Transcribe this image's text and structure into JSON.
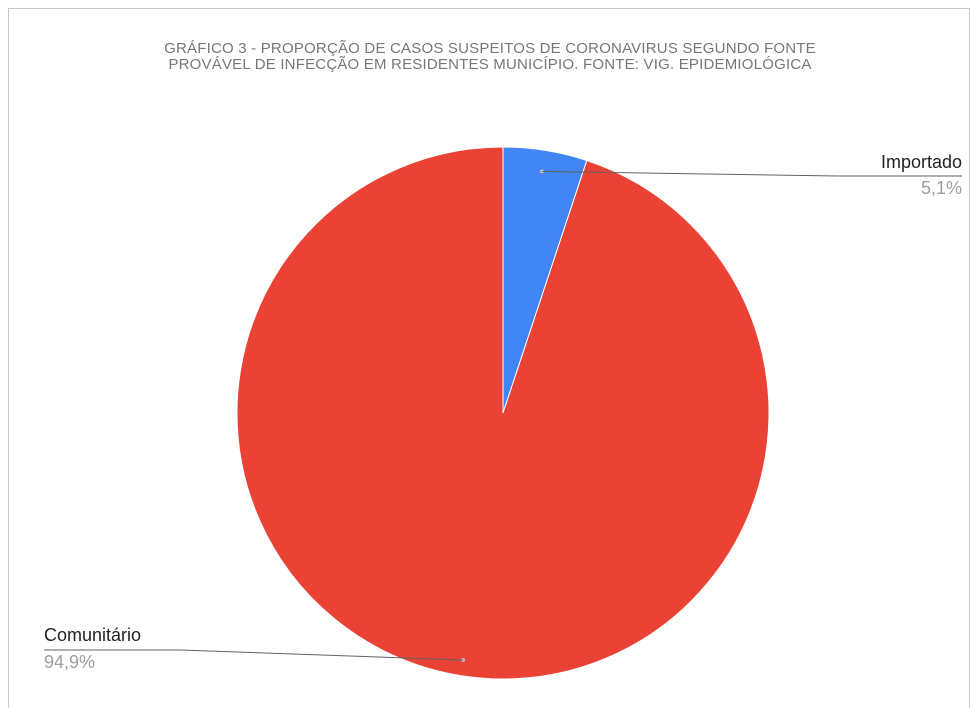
{
  "chart_data": {
    "type": "pie",
    "title_lines": [
      "GRÁFICO 3 - PROPORÇÃO DE CASOS SUSPEITOS DE CORONAVIRUS SEGUNDO FONTE",
      "PROVÁVEL DE INFECÇÃO EM RESIDENTES MUNICÍPIO. FONTE: VIG. EPIDEMIOLÓGICA"
    ],
    "slices": [
      {
        "label": "Importado",
        "value": 5.1,
        "display": "5,1%",
        "color": "#4285f4"
      },
      {
        "label": "Comunitário",
        "value": 94.9,
        "display": "94,9%",
        "color": "#ea4335"
      }
    ],
    "start_angle_deg": 0,
    "direction": "clockwise",
    "legend": "labeled"
  }
}
